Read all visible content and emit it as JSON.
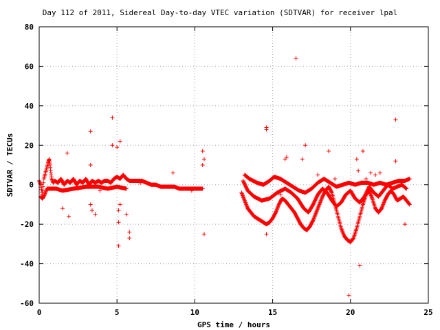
{
  "chart_data": {
    "type": "scatter",
    "title": "Day 112 of 2011, Sidereal Day-to-day VTEC variation (SDTVAR) for receiver lpal",
    "xlabel": "GPS time / hours",
    "ylabel": "SDTVAR / TECUs",
    "xlim": [
      0,
      25
    ],
    "ylim": [
      -60,
      80
    ],
    "xticks": [
      0,
      5,
      10,
      15,
      20,
      25
    ],
    "yticks": [
      -60,
      -40,
      -20,
      0,
      20,
      40,
      60,
      80
    ],
    "grid": true,
    "marker": "+",
    "color": "#ff0000",
    "segments": [
      {
        "name": "early-band",
        "points": [
          [
            0.0,
            2
          ],
          [
            0.1,
            0
          ],
          [
            0.2,
            -5
          ],
          [
            0.3,
            3
          ],
          [
            0.4,
            6
          ],
          [
            0.5,
            9
          ],
          [
            0.6,
            12
          ],
          [
            0.65,
            13
          ],
          [
            0.7,
            10
          ],
          [
            0.75,
            6
          ],
          [
            0.8,
            3
          ],
          [
            0.9,
            1
          ],
          [
            1.0,
            2
          ],
          [
            1.2,
            1
          ],
          [
            1.4,
            3
          ],
          [
            1.6,
            0
          ],
          [
            1.8,
            2
          ],
          [
            2.0,
            1
          ],
          [
            2.2,
            3
          ],
          [
            2.4,
            0
          ],
          [
            2.6,
            2
          ],
          [
            2.8,
            1
          ],
          [
            3.0,
            3
          ],
          [
            3.2,
            0
          ],
          [
            3.4,
            2
          ],
          [
            3.6,
            1
          ],
          [
            3.8,
            2
          ],
          [
            4.0,
            1
          ],
          [
            4.2,
            2
          ],
          [
            4.4,
            2
          ],
          [
            4.6,
            1
          ],
          [
            4.8,
            3
          ],
          [
            5.0,
            4
          ],
          [
            5.2,
            3
          ],
          [
            5.4,
            5
          ],
          [
            5.6,
            3
          ],
          [
            5.8,
            2
          ],
          [
            6.0,
            2
          ],
          [
            6.3,
            2
          ],
          [
            6.6,
            2
          ],
          [
            6.9,
            1
          ],
          [
            7.2,
            0
          ],
          [
            7.5,
            0
          ],
          [
            7.8,
            -1
          ],
          [
            8.1,
            -1
          ],
          [
            8.4,
            -1
          ],
          [
            8.7,
            -1
          ],
          [
            9.0,
            -2
          ],
          [
            9.3,
            -2
          ],
          [
            9.6,
            -2
          ],
          [
            9.9,
            -2
          ],
          [
            10.2,
            -2
          ],
          [
            10.5,
            -2
          ]
        ]
      },
      {
        "name": "early-low",
        "points": [
          [
            0.1,
            -6
          ],
          [
            0.2,
            -7
          ],
          [
            0.3,
            -6
          ],
          [
            0.4,
            -4
          ],
          [
            0.5,
            -2
          ],
          [
            1.1,
            -2
          ],
          [
            1.5,
            -3
          ],
          [
            2.2,
            -2
          ],
          [
            3.0,
            -1
          ],
          [
            3.8,
            -1
          ],
          [
            4.4,
            -2
          ],
          [
            5.0,
            -1
          ],
          [
            5.6,
            -2
          ]
        ]
      },
      {
        "name": "late-band-upper",
        "points": [
          [
            13.2,
            5
          ],
          [
            13.5,
            3
          ],
          [
            14.0,
            1
          ],
          [
            14.4,
            0
          ],
          [
            14.8,
            2
          ],
          [
            15.1,
            4
          ],
          [
            15.5,
            3
          ],
          [
            15.9,
            1
          ],
          [
            16.3,
            -1
          ],
          [
            16.7,
            -3
          ],
          [
            17.1,
            -4
          ],
          [
            17.5,
            -2
          ],
          [
            17.9,
            1
          ],
          [
            18.3,
            3
          ],
          [
            18.7,
            1
          ],
          [
            19.1,
            -1
          ],
          [
            19.5,
            0
          ],
          [
            19.9,
            1
          ],
          [
            20.3,
            0
          ],
          [
            20.7,
            1
          ],
          [
            21.1,
            1
          ],
          [
            21.5,
            0
          ],
          [
            21.9,
            1
          ],
          [
            22.3,
            0
          ],
          [
            22.7,
            1
          ],
          [
            23.1,
            2
          ],
          [
            23.5,
            2
          ],
          [
            23.8,
            3
          ]
        ]
      },
      {
        "name": "late-band-lower",
        "points": [
          [
            13.0,
            -4
          ],
          [
            13.2,
            -8
          ],
          [
            13.4,
            -12
          ],
          [
            13.6,
            -14
          ],
          [
            13.8,
            -16
          ],
          [
            14.0,
            -17
          ],
          [
            14.2,
            -18
          ],
          [
            14.4,
            -19
          ],
          [
            14.6,
            -20
          ],
          [
            14.8,
            -19
          ],
          [
            15.0,
            -17
          ],
          [
            15.2,
            -14
          ],
          [
            15.4,
            -10
          ],
          [
            15.6,
            -7
          ],
          [
            15.8,
            -8
          ],
          [
            16.0,
            -10
          ],
          [
            16.2,
            -12
          ],
          [
            16.4,
            -14
          ],
          [
            16.6,
            -17
          ],
          [
            16.8,
            -20
          ],
          [
            17.0,
            -22
          ],
          [
            17.2,
            -23
          ],
          [
            17.4,
            -21
          ],
          [
            17.6,
            -18
          ],
          [
            17.8,
            -14
          ],
          [
            18.0,
            -10
          ],
          [
            18.2,
            -6
          ],
          [
            18.4,
            -3
          ],
          [
            18.6,
            -1
          ],
          [
            18.8,
            -4
          ],
          [
            19.0,
            -10
          ],
          [
            19.2,
            -16
          ],
          [
            19.4,
            -22
          ],
          [
            19.6,
            -26
          ],
          [
            19.8,
            -28
          ],
          [
            20.0,
            -29
          ],
          [
            20.2,
            -27
          ],
          [
            20.4,
            -22
          ],
          [
            20.6,
            -16
          ],
          [
            20.8,
            -10
          ],
          [
            21.0,
            -5
          ],
          [
            21.2,
            -3
          ],
          [
            21.4,
            -7
          ],
          [
            21.6,
            -12
          ],
          [
            21.8,
            -14
          ],
          [
            22.0,
            -12
          ],
          [
            22.2,
            -8
          ],
          [
            22.4,
            -5
          ],
          [
            22.6,
            -3
          ],
          [
            22.8,
            -5
          ],
          [
            23.0,
            -8
          ],
          [
            23.2,
            -7
          ],
          [
            23.4,
            -6
          ],
          [
            23.6,
            -8
          ],
          [
            23.8,
            -10
          ]
        ]
      },
      {
        "name": "late-band-mid",
        "points": [
          [
            13.1,
            2
          ],
          [
            13.4,
            -3
          ],
          [
            13.8,
            -6
          ],
          [
            14.3,
            -8
          ],
          [
            14.8,
            -7
          ],
          [
            15.3,
            -4
          ],
          [
            15.8,
            -2
          ],
          [
            16.2,
            -4
          ],
          [
            16.6,
            -7
          ],
          [
            17.0,
            -12
          ],
          [
            17.3,
            -14
          ],
          [
            17.6,
            -10
          ],
          [
            17.9,
            -5
          ],
          [
            18.2,
            -2
          ],
          [
            18.5,
            -4
          ],
          [
            18.8,
            -8
          ],
          [
            19.1,
            -11
          ],
          [
            19.4,
            -9
          ],
          [
            19.7,
            -5
          ],
          [
            20.0,
            -3
          ],
          [
            20.3,
            -7
          ],
          [
            20.6,
            -9
          ],
          [
            20.9,
            -6
          ],
          [
            21.2,
            -1
          ],
          [
            21.5,
            -4
          ],
          [
            21.8,
            -6
          ],
          [
            22.1,
            -3
          ],
          [
            22.4,
            0
          ],
          [
            22.7,
            -2
          ],
          [
            23.0,
            -1
          ],
          [
            23.3,
            0
          ],
          [
            23.6,
            -2
          ]
        ]
      },
      {
        "name": "outliers",
        "points": [
          [
            16.5,
            64
          ],
          [
            4.7,
            34
          ],
          [
            22.9,
            33
          ],
          [
            3.3,
            27
          ],
          [
            14.6,
            29
          ],
          [
            14.6,
            28
          ],
          [
            5.2,
            22
          ],
          [
            4.7,
            20
          ],
          [
            5.0,
            19
          ],
          [
            1.8,
            16
          ],
          [
            10.5,
            17
          ],
          [
            10.6,
            13
          ],
          [
            10.5,
            10
          ],
          [
            3.3,
            10
          ],
          [
            17.1,
            20
          ],
          [
            18.6,
            17
          ],
          [
            15.8,
            13
          ],
          [
            15.9,
            14
          ],
          [
            16.9,
            13
          ],
          [
            17.9,
            5
          ],
          [
            1.9,
            -16
          ],
          [
            1.5,
            -12
          ],
          [
            3.3,
            -10
          ],
          [
            3.4,
            -13
          ],
          [
            3.6,
            -15
          ],
          [
            5.1,
            -13
          ],
          [
            5.2,
            -10
          ],
          [
            5.6,
            -15
          ],
          [
            5.1,
            -19
          ],
          [
            5.8,
            -24
          ],
          [
            5.8,
            -27
          ],
          [
            5.1,
            -31
          ],
          [
            10.6,
            -25
          ],
          [
            14.6,
            -25
          ],
          [
            20.6,
            -41
          ],
          [
            19.9,
            -56
          ],
          [
            23.5,
            -20
          ],
          [
            3.9,
            -3
          ],
          [
            8.6,
            6
          ],
          [
            21.6,
            5
          ],
          [
            21.9,
            6
          ],
          [
            22.9,
            12
          ],
          [
            21.3,
            6
          ],
          [
            20.8,
            17
          ],
          [
            20.4,
            13
          ],
          [
            20.5,
            7
          ],
          [
            21.0,
            3
          ],
          [
            19.0,
            3
          ],
          [
            15.5,
            -5
          ],
          [
            2.5,
            -2
          ],
          [
            6.5,
            1
          ],
          [
            9.8,
            -3
          ]
        ]
      }
    ]
  }
}
